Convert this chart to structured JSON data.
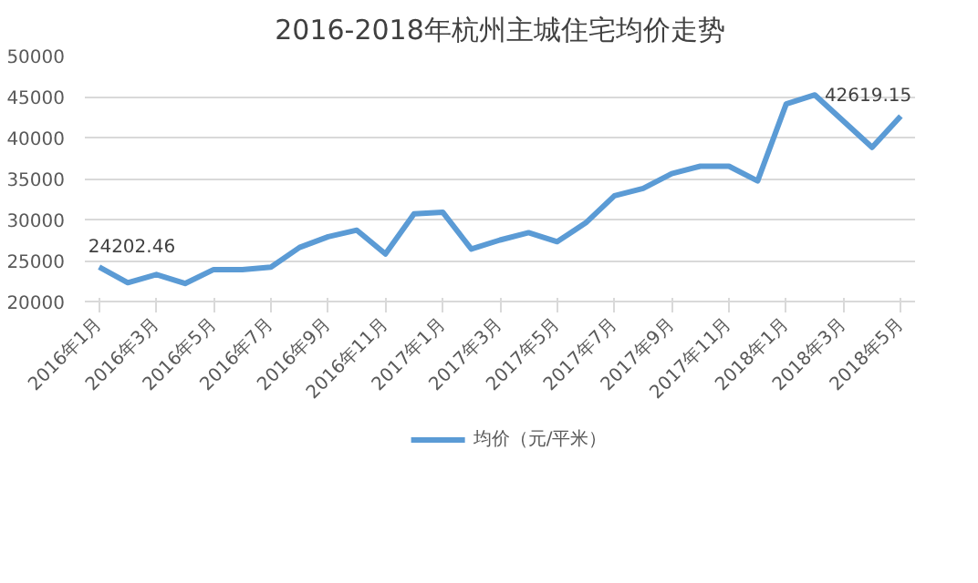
{
  "chart_data": {
    "type": "line",
    "title": "2016-2018年杭州主城住宅均价走势",
    "categories": [
      "2016年1月",
      null,
      "2016年3月",
      null,
      "2016年5月",
      null,
      "2016年7月",
      null,
      "2016年9月",
      null,
      "2016年11月",
      null,
      "2017年1月",
      null,
      "2017年3月",
      null,
      "2017年5月",
      null,
      "2017年7月",
      null,
      "2017年9月",
      null,
      "2017年11月",
      null,
      "2018年1月",
      null,
      "2018年3月",
      null,
      "2018年5月"
    ],
    "series": [
      {
        "name": "均价（元/平米）",
        "color": "#5b9bd5",
        "values": [
          24202.46,
          22300,
          23300,
          22200,
          23900,
          23900,
          24200,
          26600,
          27900,
          28700,
          25800,
          30700,
          30900,
          26400,
          27500,
          28400,
          27300,
          29600,
          32900,
          33800,
          35600,
          36500,
          36500,
          34700,
          44100,
          45200,
          42000,
          38800,
          42619.15
        ],
        "value_labels": [
          "24202.46",
          null,
          null,
          null,
          null,
          null,
          null,
          null,
          null,
          null,
          null,
          null,
          null,
          null,
          null,
          null,
          null,
          null,
          null,
          null,
          null,
          null,
          null,
          null,
          null,
          null,
          null,
          null,
          "42619.15"
        ]
      }
    ],
    "ylim": [
      20000,
      50000
    ],
    "yticks": [
      20000,
      25000,
      30000,
      35000,
      40000,
      45000,
      50000
    ],
    "grid": "y",
    "legend": "bottom",
    "marker": "none",
    "line_style": "solid"
  }
}
